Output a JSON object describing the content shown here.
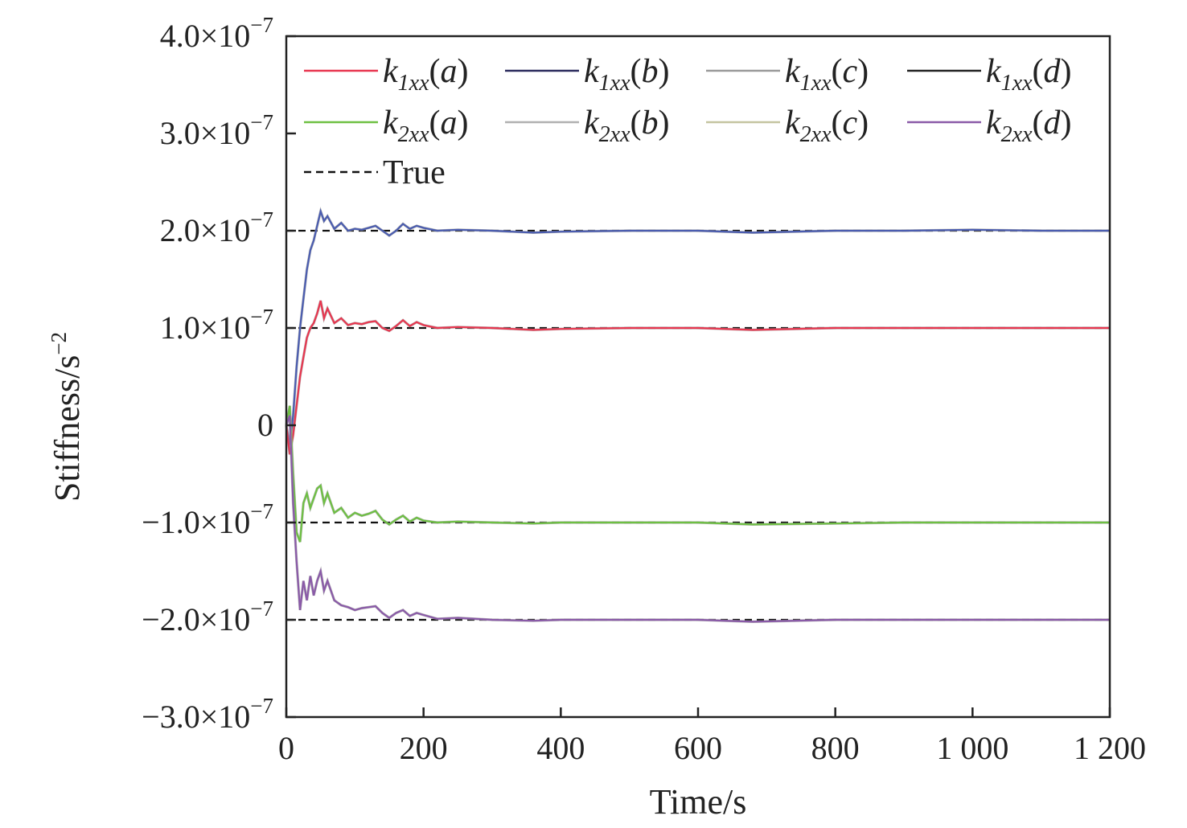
{
  "chart_data": {
    "type": "line",
    "xlabel": "Time/s",
    "ylabel": "Stiffness/s",
    "ylabel_exponent": "−2",
    "xlim": [
      0,
      1200
    ],
    "ylim": [
      -3e-07,
      4e-07
    ],
    "x_ticks": [
      {
        "value": 0,
        "label": "0"
      },
      {
        "value": 200,
        "label": "200"
      },
      {
        "value": 400,
        "label": "400"
      },
      {
        "value": 600,
        "label": "600"
      },
      {
        "value": 800,
        "label": "800"
      },
      {
        "value": 1000,
        "label": "1 000"
      },
      {
        "value": 1200,
        "label": "1 200"
      }
    ],
    "y_ticks": [
      {
        "value": 4e-07,
        "mantissa": "4.0×10",
        "exp": "−7"
      },
      {
        "value": 3e-07,
        "mantissa": "3.0×10",
        "exp": "−7"
      },
      {
        "value": 2e-07,
        "mantissa": "2.0×10",
        "exp": "−7"
      },
      {
        "value": 1e-07,
        "mantissa": "1.0×10",
        "exp": "−7"
      },
      {
        "value": 0,
        "mantissa": "0",
        "exp": ""
      },
      {
        "value": -1e-07,
        "mantissa": "−1.0×10",
        "exp": "−7"
      },
      {
        "value": -2e-07,
        "mantissa": "−2.0×10",
        "exp": "−7"
      },
      {
        "value": -3e-07,
        "mantissa": "−3.0×10",
        "exp": "−7"
      }
    ],
    "grid": false,
    "legend_position": "top",
    "true_values": [
      2e-07,
      1e-07,
      -1e-07,
      -2e-07
    ],
    "series": [
      {
        "name": "k1xx(a)",
        "k": "k",
        "sub": "1xx",
        "arg": "(a)",
        "color": "#e8364f",
        "group": 1
      },
      {
        "name": "k1xx(b)",
        "k": "k",
        "sub": "1xx",
        "arg": "(b)",
        "color": "#2b2b5e",
        "group": 0
      },
      {
        "name": "k1xx(c)",
        "k": "k",
        "sub": "1xx",
        "arg": "(c)",
        "color": "#9a9a9a",
        "group": 0
      },
      {
        "name": "k1xx(d)",
        "k": "k",
        "sub": "1xx",
        "arg": "(d)",
        "color": "#222222",
        "group": 0
      },
      {
        "name": "k2xx(a)",
        "k": "k",
        "sub": "2xx",
        "arg": "(a)",
        "color": "#6ec043",
        "group": 2
      },
      {
        "name": "k2xx(b)",
        "k": "k",
        "sub": "2xx",
        "arg": "(b)",
        "color": "#b0b0b0",
        "group": 3
      },
      {
        "name": "k2xx(c)",
        "k": "k",
        "sub": "2xx",
        "arg": "(c)",
        "color": "#c4c4a0",
        "group": 2
      },
      {
        "name": "k2xx(d)",
        "k": "k",
        "sub": "2xx",
        "arg": "(d)",
        "color": "#8a5aa8",
        "group": 3
      },
      {
        "name": "True",
        "label": "True",
        "color": "#111111",
        "dashed": true
      }
    ],
    "series_curves": [
      {
        "name": "k1xx(b)",
        "color": "#4a5cb0",
        "target": 2e-07,
        "x": [
          0,
          5,
          10,
          15,
          20,
          25,
          30,
          35,
          40,
          45,
          50,
          55,
          60,
          70,
          80,
          90,
          100,
          110,
          120,
          130,
          140,
          150,
          160,
          170,
          180,
          190,
          200,
          220,
          250,
          300,
          360,
          400,
          500,
          600,
          680,
          800,
          900,
          1000,
          1100,
          1200
        ],
        "y": [
          0,
          -2e-08,
          1e-08,
          6e-08,
          1e-07,
          1.3e-07,
          1.6e-07,
          1.8e-07,
          1.9e-07,
          2.05e-07,
          2.2e-07,
          2.1e-07,
          2.15e-07,
          2.02e-07,
          2.08e-07,
          2e-07,
          2.02e-07,
          2.01e-07,
          2.03e-07,
          2.05e-07,
          2e-07,
          1.95e-07,
          2e-07,
          2.07e-07,
          2.02e-07,
          2.05e-07,
          2.03e-07,
          2e-07,
          2.01e-07,
          2e-07,
          1.98e-07,
          1.99e-07,
          2e-07,
          2e-07,
          1.98e-07,
          2e-07,
          2e-07,
          2.01e-07,
          2e-07,
          2e-07
        ]
      },
      {
        "name": "k1xx(a)",
        "color": "#e8364f",
        "target": 1e-07,
        "x": [
          0,
          5,
          10,
          15,
          20,
          25,
          30,
          35,
          40,
          45,
          50,
          55,
          60,
          70,
          80,
          90,
          100,
          110,
          120,
          130,
          140,
          150,
          160,
          170,
          180,
          190,
          200,
          220,
          250,
          300,
          360,
          400,
          500,
          600,
          680,
          800,
          900,
          1000,
          1100,
          1200
        ],
        "y": [
          0,
          -3e-08,
          -1e-08,
          2e-08,
          5e-08,
          7e-08,
          9e-08,
          1e-07,
          1.05e-07,
          1.15e-07,
          1.28e-07,
          1.1e-07,
          1.2e-07,
          1.05e-07,
          1.1e-07,
          1.03e-07,
          1.05e-07,
          1.04e-07,
          1.06e-07,
          1.07e-07,
          1e-07,
          9.7e-08,
          1.02e-07,
          1.08e-07,
          1.02e-07,
          1.06e-07,
          1.03e-07,
          1e-07,
          1.01e-07,
          1e-07,
          9.8e-08,
          9.9e-08,
          1e-07,
          1e-07,
          9.8e-08,
          1e-07,
          1e-07,
          1e-07,
          1e-07,
          1e-07
        ]
      },
      {
        "name": "k2xx(a)",
        "color": "#6ec043",
        "target": -1e-07,
        "x": [
          0,
          5,
          10,
          15,
          20,
          25,
          30,
          35,
          40,
          45,
          50,
          55,
          60,
          70,
          80,
          90,
          100,
          110,
          120,
          130,
          140,
          150,
          160,
          170,
          180,
          190,
          200,
          220,
          250,
          300,
          360,
          400,
          500,
          600,
          680,
          800,
          900,
          1000,
          1100,
          1200
        ],
        "y": [
          0,
          2e-08,
          -5e-08,
          -1.1e-07,
          -1.2e-07,
          -8e-08,
          -7e-08,
          -8.5e-08,
          -7.5e-08,
          -6.5e-08,
          -6.2e-08,
          -8e-08,
          -7e-08,
          -9e-08,
          -8.5e-08,
          -9.5e-08,
          -9e-08,
          -9.3e-08,
          -9.1e-08,
          -8.8e-08,
          -9.7e-08,
          -1.02e-07,
          -9.7e-08,
          -9.3e-08,
          -9.9e-08,
          -9.5e-08,
          -9.8e-08,
          -1e-07,
          -9.9e-08,
          -1e-07,
          -1.01e-07,
          -1e-07,
          -1e-07,
          -1e-07,
          -1.02e-07,
          -1.01e-07,
          -1e-07,
          -1e-07,
          -1e-07,
          -1e-07
        ]
      },
      {
        "name": "k2xx(d)",
        "color": "#8a5aa8",
        "target": -2e-07,
        "x": [
          0,
          5,
          10,
          15,
          20,
          25,
          30,
          35,
          40,
          45,
          50,
          55,
          60,
          70,
          80,
          90,
          100,
          110,
          120,
          130,
          140,
          150,
          160,
          170,
          180,
          190,
          200,
          220,
          250,
          300,
          360,
          400,
          500,
          600,
          680,
          800,
          900,
          1000,
          1100,
          1200
        ],
        "y": [
          0,
          1e-08,
          -8e-08,
          -1.4e-07,
          -1.9e-07,
          -1.6e-07,
          -1.8e-07,
          -1.55e-07,
          -1.75e-07,
          -1.6e-07,
          -1.5e-07,
          -1.7e-07,
          -1.6e-07,
          -1.8e-07,
          -1.85e-07,
          -1.87e-07,
          -1.9e-07,
          -1.88e-07,
          -1.87e-07,
          -1.86e-07,
          -1.93e-07,
          -1.98e-07,
          -1.93e-07,
          -1.9e-07,
          -1.96e-07,
          -1.93e-07,
          -1.95e-07,
          -1.99e-07,
          -1.98e-07,
          -2e-07,
          -2.01e-07,
          -2e-07,
          -2e-07,
          -2e-07,
          -2.02e-07,
          -2e-07,
          -2e-07,
          -2e-07,
          -2e-07,
          -2e-07
        ]
      }
    ]
  }
}
